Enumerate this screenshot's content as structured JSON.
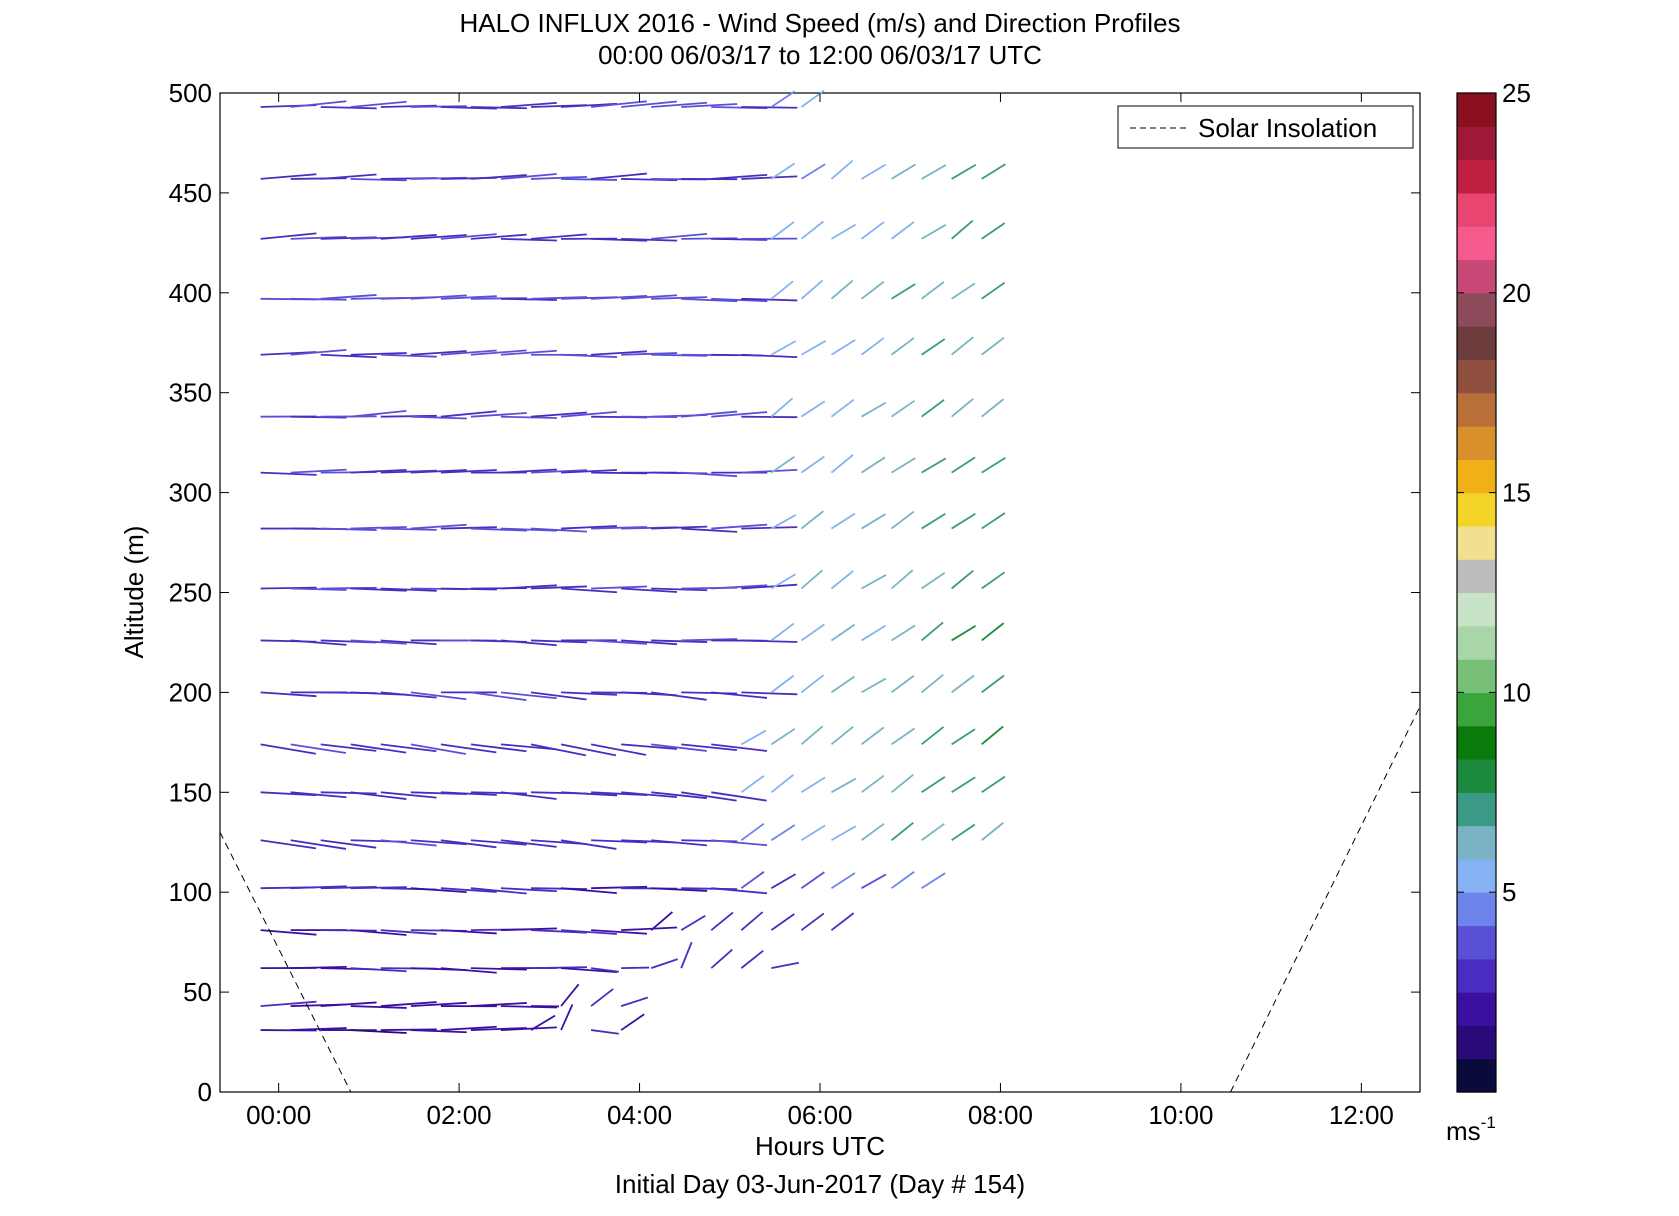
{
  "chart_data": {
    "type": "scatter",
    "title": "HALO INFLUX 2016 - Wind Speed (m/s) and Direction Profiles",
    "subtitle": "00:00 06/03/17 to 12:00 06/03/17  UTC",
    "xlabel": "Hours UTC",
    "xlabel2": "Initial Day 03-Jun-2017 (Day # 154)",
    "ylabel": "Altitude (m)",
    "xlim": [
      -0.65,
      12.65
    ],
    "ylim": [
      0,
      500
    ],
    "x_ticks": [
      0,
      2,
      4,
      6,
      8,
      10,
      12
    ],
    "x_tick_labels": [
      "00:00",
      "02:00",
      "04:00",
      "06:00",
      "08:00",
      "10:00",
      "12:00"
    ],
    "y_ticks": [
      0,
      50,
      100,
      150,
      200,
      250,
      300,
      350,
      400,
      450,
      500
    ],
    "y_tick_labels": [
      "0",
      "50",
      "100",
      "150",
      "200",
      "250",
      "300",
      "350",
      "400",
      "450",
      "500"
    ],
    "legend": {
      "label": "Solar Insolation",
      "placement": "top-right"
    },
    "colorbar": {
      "ticks": [
        5,
        10,
        15,
        20,
        25
      ],
      "tick_labels": [
        "5",
        "10",
        "15",
        "20",
        "25"
      ],
      "range": [
        0,
        25
      ],
      "unit_label": "ms",
      "unit_exponent": "-1",
      "colors": [
        "#0a0a3c",
        "#2a0a78",
        "#3a10a0",
        "#4a2cc0",
        "#5a50d8",
        "#6c84ec",
        "#86b2f4",
        "#7ab4c4",
        "#3a9a86",
        "#1c8a3c",
        "#0a7a0a",
        "#3ca43c",
        "#78c078",
        "#a8d6a8",
        "#c8e4c8",
        "#bcbcbc",
        "#f0e090",
        "#f4d428",
        "#f0b018",
        "#d8902c",
        "#b87038",
        "#905040",
        "#6c3c3c",
        "#8c4a5a",
        "#c84878",
        "#f45a8c",
        "#e84670",
        "#c02040",
        "#a01838",
        "#8a1020"
      ]
    },
    "series": [
      {
        "name": "Solar Insolation",
        "style": "dashed",
        "segments": [
          [
            [
              -0.65,
              130
            ],
            [
              0.8,
              0
            ]
          ],
          [
            [
              10.55,
              0
            ],
            [
              12.65,
              193
            ]
          ]
        ]
      }
    ],
    "wind_barbs": {
      "altitudes": [
        31,
        43,
        62,
        81,
        102,
        126,
        150,
        174,
        200,
        226,
        252,
        282,
        310,
        338,
        369,
        397,
        427,
        457,
        493
      ],
      "time_start": -0.2,
      "time_step": 0.333,
      "layers": [
        {
          "alt": 31,
          "n": 13,
          "t0": 0.0,
          "spd": 2.0,
          "dir": 270,
          "cal_from": 2.6,
          "cal_spd": 3.0
        },
        {
          "alt": 43,
          "n": 13,
          "spd": 2.2,
          "dir": 268,
          "cal_from": 2.6,
          "cal_spd": 3.2
        },
        {
          "alt": 62,
          "n": 18,
          "spd": 2.4,
          "dir": 272,
          "cal_from": 3.4,
          "cal_spd": 3.3
        },
        {
          "alt": 81,
          "n": 20,
          "spd": 2.6,
          "dir": 271,
          "cal_from": 3.9,
          "cal_spd": 3.4
        },
        {
          "alt": 102,
          "n": 23,
          "spd": 2.8,
          "dir": 272,
          "cal_from": 4.8,
          "cal_spd": 4.6
        },
        {
          "alt": 126,
          "n": 25,
          "spd": 3.0,
          "dir": 275,
          "cal_from": 4.8,
          "cal_spd": 7.0
        },
        {
          "alt": 150,
          "n": 25,
          "spd": 3.0,
          "dir": 275,
          "cal_from": 4.8,
          "cal_spd": 7.4
        },
        {
          "alt": 174,
          "n": 25,
          "spd": 3.1,
          "dir": 278,
          "cal_from": 4.8,
          "cal_spd": 7.6
        },
        {
          "alt": 200,
          "n": 25,
          "spd": 3.1,
          "dir": 274,
          "cal_from": 5.2,
          "cal_spd": 7.6
        },
        {
          "alt": 226,
          "n": 25,
          "spd": 3.2,
          "dir": 272,
          "cal_from": 5.2,
          "cal_spd": 7.6
        },
        {
          "alt": 252,
          "n": 25,
          "spd": 3.3,
          "dir": 270,
          "cal_from": 5.2,
          "cal_spd": 7.5
        },
        {
          "alt": 282,
          "n": 25,
          "spd": 3.4,
          "dir": 270,
          "cal_from": 5.2,
          "cal_spd": 7.4
        },
        {
          "alt": 310,
          "n": 25,
          "spd": 3.4,
          "dir": 270,
          "cal_from": 5.2,
          "cal_spd": 7.4
        },
        {
          "alt": 338,
          "n": 25,
          "spd": 3.4,
          "dir": 268,
          "cal_from": 5.2,
          "cal_spd": 7.3
        },
        {
          "alt": 369,
          "n": 25,
          "spd": 3.4,
          "dir": 269,
          "cal_from": 5.2,
          "cal_spd": 7.3
        },
        {
          "alt": 397,
          "n": 25,
          "spd": 3.4,
          "dir": 269,
          "cal_from": 5.2,
          "cal_spd": 7.2
        },
        {
          "alt": 427,
          "n": 25,
          "spd": 3.3,
          "dir": 268,
          "cal_from": 5.2,
          "cal_spd": 7.2
        },
        {
          "alt": 457,
          "n": 25,
          "spd": 3.3,
          "dir": 268,
          "cal_from": 5.2,
          "cal_spd": 7.1
        },
        {
          "alt": 493,
          "n": 19,
          "spd": 3.3,
          "dir": 268,
          "cal_from": 5.2,
          "cal_spd": 6.8
        }
      ]
    }
  }
}
